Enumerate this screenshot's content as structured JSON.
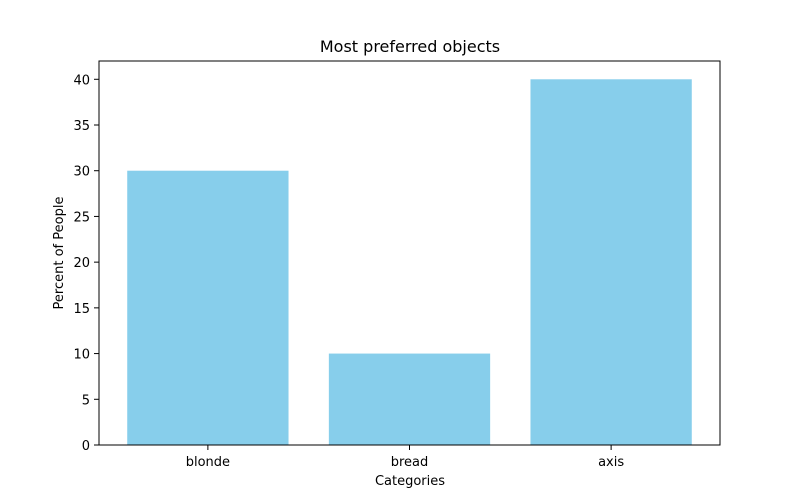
{
  "chart_data": {
    "type": "bar",
    "title": "Most preferred objects",
    "xlabel": "Categories",
    "ylabel": "Percent of People",
    "categories": [
      "blonde",
      "bread",
      "axis"
    ],
    "values": [
      30,
      10,
      40
    ],
    "ylim": [
      0,
      42
    ],
    "yticks": [
      0,
      5,
      10,
      15,
      20,
      25,
      30,
      35,
      40
    ],
    "grid": false,
    "legend": "none",
    "bar_color": "#87ceeb"
  }
}
